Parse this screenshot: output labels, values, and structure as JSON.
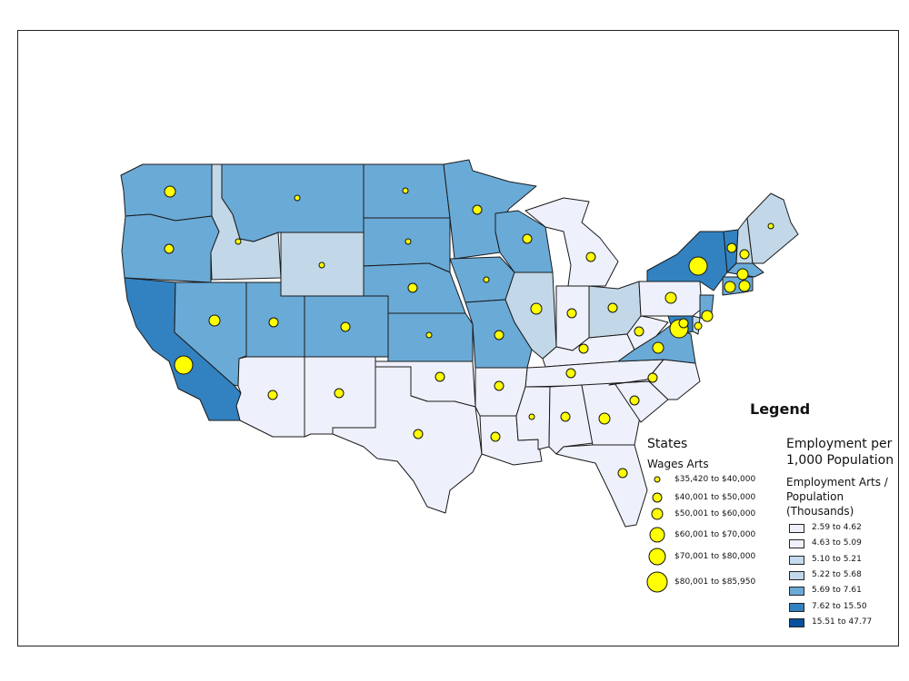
{
  "legend": {
    "title": "Legend",
    "wages_group": "States",
    "wages_title": "Wages Arts",
    "wages_classes": [
      "$35,420 to $40,000",
      "$40,001 to $50,000",
      "$50,001 to $60,000",
      "$60,001 to $70,000",
      "$70,001 to $80,000",
      "$80,001 to $85,950"
    ],
    "emp_group_line1": "Employment per",
    "emp_group_line2": "1,000 Population",
    "emp_title_line1": "Employment Arts /",
    "emp_title_line2": "Population",
    "emp_title_line3": "(Thousands)",
    "emp_classes": [
      {
        "label": "2.59 to 4.62",
        "color": "#eef1fb"
      },
      {
        "label": "4.63 to 5.09",
        "color": "#eef1fb"
      },
      {
        "label": "5.10 to 5.21",
        "color": "#c6dbef"
      },
      {
        "label": "5.22 to 5.68",
        "color": "#c2d8e8"
      },
      {
        "label": "5.69 to 7.61",
        "color": "#6aaad7"
      },
      {
        "label": "7.62 to 15.50",
        "color": "#3282c1"
      },
      {
        "label": "15.51 to 47.77",
        "color": "#08519c"
      }
    ]
  },
  "colors": {
    "class_2_59_to_4_62": "#eef1fb",
    "class_5_22_to_5_68": "#c2d8e8",
    "class_5_69_to_7_61": "#6aaad7",
    "class_7_62_to_15_50": "#3282c1",
    "wage_symbol": "#ffff00"
  }
}
